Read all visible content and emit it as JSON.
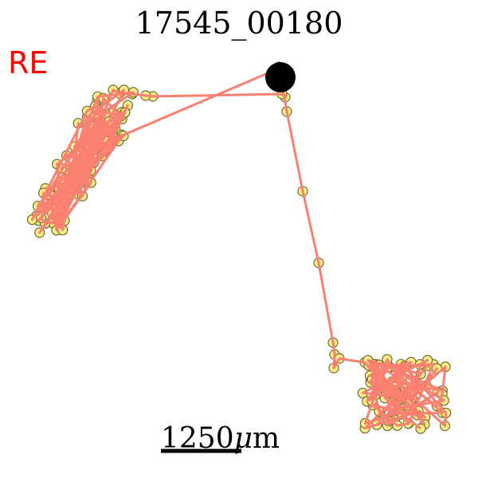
{
  "title": "17545_00180",
  "eye_label": "RE",
  "scale_bar": {
    "value": "1250",
    "unit_prefix": "μ",
    "unit": "m"
  },
  "colors": {
    "path": "#fa8072",
    "point_fill": "#ffee88",
    "point_stroke": "#6b6b2a",
    "start_marker": "#000000",
    "eye_label": "#ff0000"
  }
}
